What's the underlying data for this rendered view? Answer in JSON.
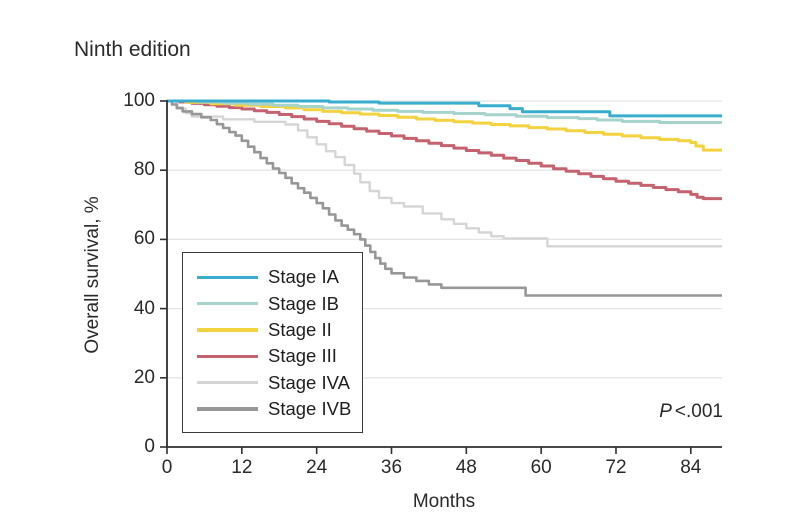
{
  "figure": {
    "title": "Ninth edition",
    "x_axis_label": "Months",
    "y_axis_label": "Overall survival, %",
    "p_stat": {
      "symbol": "P",
      "value": "<.001"
    }
  },
  "colors": {
    "background": "#ffffff",
    "axis": "#303030",
    "gridline": "#e4e4e4",
    "text": "#2a2a2a",
    "legend_border": "#3a3a3a"
  },
  "chart_data": {
    "type": "line",
    "variant": "kaplan-meier-step",
    "title": "Ninth edition",
    "xlabel": "Months",
    "ylabel": "Overall survival, %",
    "xlim": [
      0,
      89
    ],
    "ylim": [
      0,
      100
    ],
    "xticks": [
      0,
      12,
      24,
      36,
      48,
      60,
      72,
      84
    ],
    "yticks": [
      0,
      20,
      40,
      60,
      80,
      100
    ],
    "grid": "horizontal-light",
    "legend_position": "inside-lower-left",
    "annotation": "P <.001",
    "series": [
      {
        "name": "Stage IA",
        "color": "#39adce",
        "stroke_width": 3,
        "points": [
          [
            0,
            100
          ],
          [
            26,
            99.7
          ],
          [
            34,
            99.4
          ],
          [
            50,
            98.6
          ],
          [
            55,
            97.8
          ],
          [
            57,
            96.9
          ],
          [
            71,
            95.7
          ],
          [
            89,
            95.7
          ]
        ]
      },
      {
        "name": "Stage IB",
        "color": "#a6d3cc",
        "stroke_width": 3,
        "points": [
          [
            0,
            100
          ],
          [
            5,
            99.7
          ],
          [
            9,
            99.4
          ],
          [
            13,
            99.1
          ],
          [
            17,
            98.8
          ],
          [
            21,
            98.4
          ],
          [
            25,
            98
          ],
          [
            29,
            97.7
          ],
          [
            33,
            97.3
          ],
          [
            37,
            97
          ],
          [
            41,
            96.7
          ],
          [
            46,
            96.4
          ],
          [
            51,
            96
          ],
          [
            56,
            95.6
          ],
          [
            61,
            95.2
          ],
          [
            66,
            94.9
          ],
          [
            69,
            94.5
          ],
          [
            73,
            94.1
          ],
          [
            79,
            93.8
          ],
          [
            89,
            93.8
          ]
        ]
      },
      {
        "name": "Stage II",
        "color": "#f3d240",
        "stroke_width": 3,
        "points": [
          [
            0,
            100
          ],
          [
            3,
            99.6
          ],
          [
            7,
            99.2
          ],
          [
            11,
            98.8
          ],
          [
            15,
            98.4
          ],
          [
            19,
            98
          ],
          [
            22,
            97.5
          ],
          [
            25,
            97
          ],
          [
            28,
            96.6
          ],
          [
            31,
            96.2
          ],
          [
            34,
            95.8
          ],
          [
            37,
            95.3
          ],
          [
            40,
            94.8
          ],
          [
            43,
            94.4
          ],
          [
            46,
            94
          ],
          [
            49,
            93.6
          ],
          [
            52,
            93.2
          ],
          [
            55,
            92.8
          ],
          [
            58,
            92.3
          ],
          [
            61,
            91.9
          ],
          [
            64,
            91.4
          ],
          [
            67,
            90.9
          ],
          [
            70,
            90.4
          ],
          [
            73,
            89.9
          ],
          [
            76,
            89.4
          ],
          [
            79,
            88.9
          ],
          [
            82,
            88.5
          ],
          [
            84,
            88
          ],
          [
            84.8,
            87
          ],
          [
            86,
            85.8
          ],
          [
            89,
            85.8
          ]
        ]
      },
      {
        "name": "Stage III",
        "color": "#c5626f",
        "stroke_width": 3,
        "points": [
          [
            0,
            100
          ],
          [
            2,
            99.7
          ],
          [
            4,
            99.3
          ],
          [
            6,
            98.9
          ],
          [
            8,
            98.5
          ],
          [
            10,
            98.1
          ],
          [
            12,
            97.7
          ],
          [
            14,
            97.2
          ],
          [
            16,
            96.7
          ],
          [
            18,
            96.1
          ],
          [
            20,
            95.5
          ],
          [
            22,
            94.8
          ],
          [
            24,
            94.1
          ],
          [
            26,
            93.4
          ],
          [
            28,
            92.7
          ],
          [
            30,
            92
          ],
          [
            32,
            91.3
          ],
          [
            34,
            90.6
          ],
          [
            36,
            89.9
          ],
          [
            38,
            89.2
          ],
          [
            40,
            88.5
          ],
          [
            42,
            87.8
          ],
          [
            44,
            87.1
          ],
          [
            46,
            86.4
          ],
          [
            48,
            85.7
          ],
          [
            50,
            85
          ],
          [
            52,
            84.3
          ],
          [
            54,
            83.5
          ],
          [
            56,
            82.8
          ],
          [
            58,
            82
          ],
          [
            60,
            81.2
          ],
          [
            62,
            80.4
          ],
          [
            64,
            79.7
          ],
          [
            66,
            79
          ],
          [
            68,
            78.2
          ],
          [
            70,
            77.5
          ],
          [
            72,
            76.8
          ],
          [
            74,
            76.2
          ],
          [
            76,
            75.6
          ],
          [
            78,
            75
          ],
          [
            80,
            74.4
          ],
          [
            82,
            73.8
          ],
          [
            84,
            73
          ],
          [
            85,
            72.2
          ],
          [
            86,
            71.8
          ],
          [
            89,
            71.8
          ]
        ]
      },
      {
        "name": "Stage IVA",
        "color": "#d5d5d5",
        "stroke_width": 2.4,
        "points": [
          [
            0,
            100
          ],
          [
            1.5,
            97.8
          ],
          [
            3,
            96.5
          ],
          [
            4,
            95.5
          ],
          [
            9,
            94.7
          ],
          [
            14,
            94
          ],
          [
            19,
            93.2
          ],
          [
            21,
            91.5
          ],
          [
            22.5,
            89.5
          ],
          [
            24,
            87.5
          ],
          [
            25.5,
            85.5
          ],
          [
            27,
            83.8
          ],
          [
            28.5,
            81.5
          ],
          [
            30,
            79
          ],
          [
            31,
            76.5
          ],
          [
            32.5,
            74
          ],
          [
            34,
            72
          ],
          [
            36,
            70.5
          ],
          [
            38,
            69.5
          ],
          [
            41,
            67.5
          ],
          [
            44,
            65.8
          ],
          [
            46,
            64.5
          ],
          [
            48,
            63.2
          ],
          [
            50,
            62
          ],
          [
            52,
            60.9
          ],
          [
            54,
            60.3
          ],
          [
            61,
            58
          ],
          [
            89,
            58
          ]
        ]
      },
      {
        "name": "Stage IVB",
        "color": "#979797",
        "stroke_width": 2.6,
        "points": [
          [
            0,
            100
          ],
          [
            0.8,
            99
          ],
          [
            1.6,
            98
          ],
          [
            2.5,
            97
          ],
          [
            4,
            96.2
          ],
          [
            5.5,
            95.3
          ],
          [
            7,
            94.5
          ],
          [
            8,
            93.3
          ],
          [
            9,
            92.2
          ],
          [
            10,
            91
          ],
          [
            11,
            90
          ],
          [
            12,
            88.5
          ],
          [
            13,
            86.8
          ],
          [
            14,
            85.2
          ],
          [
            15,
            83.5
          ],
          [
            16,
            82
          ],
          [
            17,
            80.5
          ],
          [
            18,
            79.2
          ],
          [
            19,
            77.8
          ],
          [
            20,
            76.2
          ],
          [
            21,
            74.8
          ],
          [
            22,
            73.5
          ],
          [
            23,
            72
          ],
          [
            24,
            70.5
          ],
          [
            25,
            69
          ],
          [
            26,
            67.2
          ],
          [
            27,
            65.5
          ],
          [
            28,
            64
          ],
          [
            29,
            62.8
          ],
          [
            30,
            61.5
          ],
          [
            31,
            60
          ],
          [
            31.8,
            58.2
          ],
          [
            32.6,
            56.4
          ],
          [
            33.4,
            54.6
          ],
          [
            34.2,
            53
          ],
          [
            35,
            51.5
          ],
          [
            36,
            50.2
          ],
          [
            38,
            49
          ],
          [
            40,
            48
          ],
          [
            42,
            47
          ],
          [
            44,
            46
          ],
          [
            57.5,
            43.8
          ],
          [
            89,
            43.8
          ]
        ]
      }
    ]
  }
}
